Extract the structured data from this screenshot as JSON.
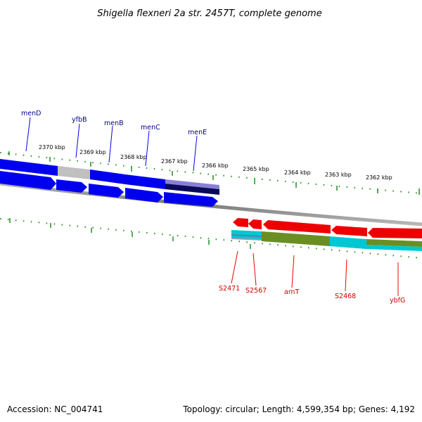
{
  "header": {
    "title": "Shigella flexneri 2a str. 2457T, complete genome"
  },
  "footer": {
    "accession": "Accession: NC_004741",
    "summary": "Topology: circular; Length: 4,599,354 bp; Genes: 4,192"
  },
  "axis": {
    "ticks": [
      "2370 kbp",
      "2369 kbp",
      "2368 kbp",
      "2367 kbp",
      "2366 kbp",
      "2365 kbp",
      "2364 kbp",
      "2363 kbp",
      "2362 kbp"
    ]
  },
  "genes": {
    "top_strand": [
      "menD",
      "yfbB",
      "menB",
      "menC",
      "menE"
    ],
    "bottom_strand": [
      "S2471",
      "S2567",
      "arnT",
      "S2468",
      "ybfG"
    ]
  },
  "colors": {
    "forward_gene": "#0000ee",
    "reverse_gene": "#ee0000",
    "tick": "#228b22",
    "backbone": "#808080",
    "grey_segment": "#c0c0c0",
    "olive_segment": "#6b8e23",
    "cyan_segment": "#00c8d2",
    "purple_segment": "#8a7fd6"
  }
}
